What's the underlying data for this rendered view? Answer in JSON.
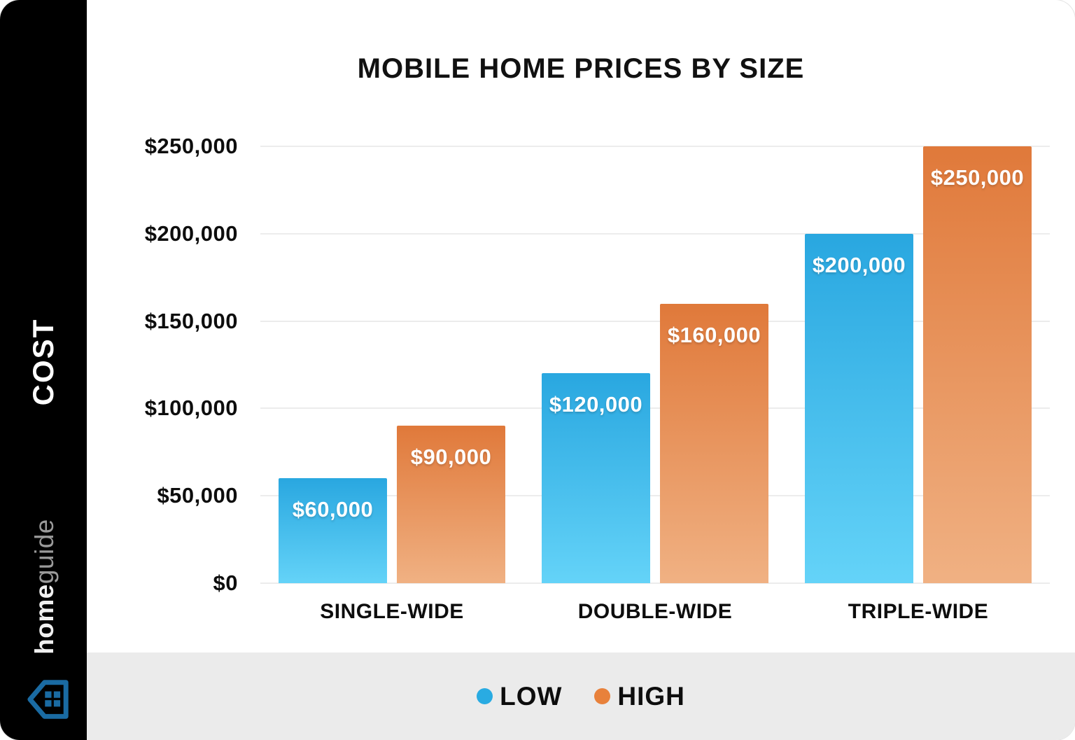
{
  "sidebar": {
    "vertical_label": "COST",
    "brand_bold": "home",
    "brand_light": "guide"
  },
  "chart_data": {
    "type": "bar",
    "title": "MOBILE HOME PRICES BY SIZE",
    "categories": [
      "SINGLE-WIDE",
      "DOUBLE-WIDE",
      "TRIPLE-WIDE"
    ],
    "series": [
      {
        "name": "LOW",
        "values": [
          60000,
          120000,
          200000
        ],
        "data_labels": [
          "$60,000",
          "$120,000",
          "$200,000"
        ],
        "gradient_top": "#29A7E0",
        "gradient_bottom": "#64D3F8",
        "legend_dot_color": "#29ABE2"
      },
      {
        "name": "HIGH",
        "values": [
          90000,
          160000,
          250000
        ],
        "data_labels": [
          "$90,000",
          "$160,000",
          "$250,000"
        ],
        "gradient_top": "#E0793A",
        "gradient_bottom": "#F0B183",
        "legend_dot_color": "#E8813B"
      }
    ],
    "ylim": [
      0,
      250000
    ],
    "ytick_step": 50000,
    "ytick_labels": [
      "$0",
      "$50,000",
      "$100,000",
      "$150,000",
      "$200,000",
      "$250,000"
    ],
    "grid": true,
    "legend_position": "bottom"
  },
  "colors": {
    "sidebar_bg": "#000000",
    "cost_text": "#ffffff",
    "brand_bold_color": "#f0f0f0",
    "brand_light_color": "#9a9a9a",
    "house_icon": "#1A6BA3",
    "gridline": "#ececec",
    "legend_band_bg": "#ebebeb",
    "title_color": "#111111"
  }
}
